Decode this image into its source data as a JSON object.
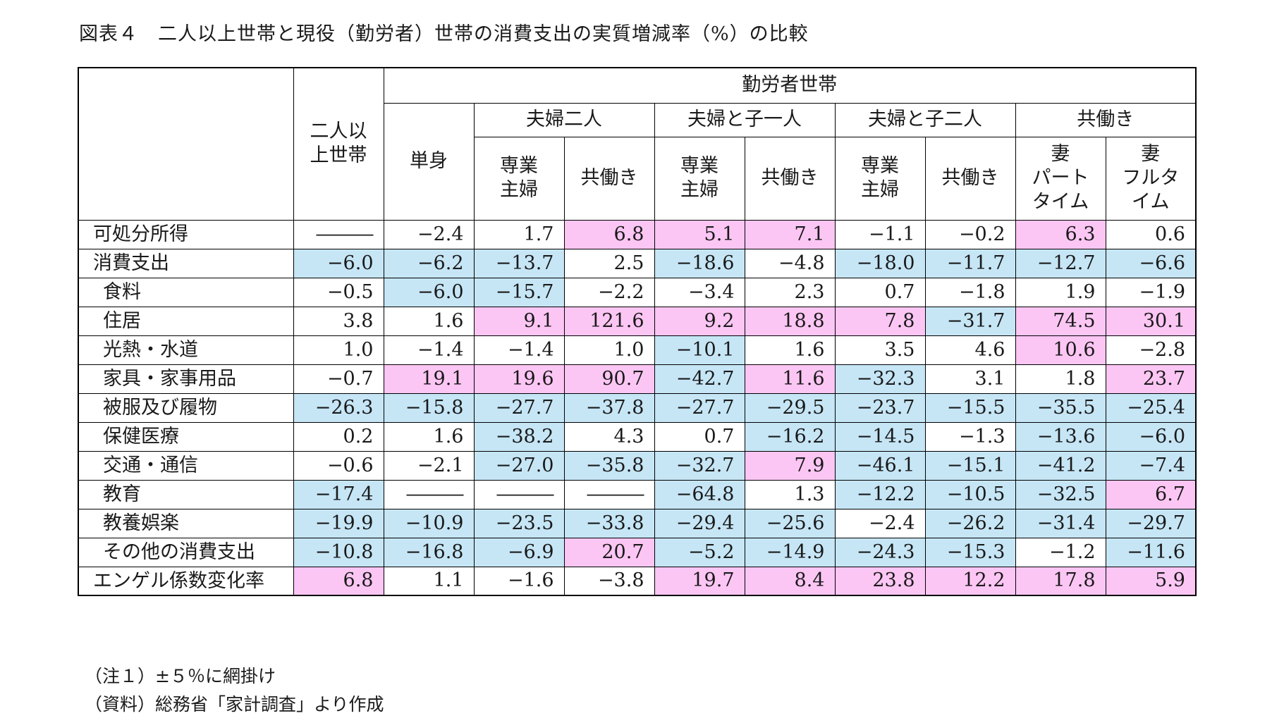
{
  "title": "図表４　二人以上世帯と現役（勤労者）世帯の消費支出の実質増減率（%）の比較",
  "header": {
    "col_all": [
      "二人以",
      "上世帯"
    ],
    "workers": "勤労者世帯",
    "single": "単身",
    "couple": "夫婦二人",
    "couple_child1": "夫婦と子一人",
    "couple_child2": "夫婦と子二人",
    "dual_income": "共働き",
    "housewife": [
      "専業",
      "主婦"
    ],
    "dual": "共働き",
    "wife_part": [
      "妻",
      "パート",
      "タイム"
    ],
    "wife_full": [
      "妻",
      "フルタ",
      "イム"
    ]
  },
  "rows": [
    {
      "label": "可処分所得",
      "indent": false,
      "values": [
        "―――",
        "−2.4",
        "1.7",
        "6.8",
        "5.1",
        "7.1",
        "−1.1",
        "−0.2",
        "6.3",
        "0.6"
      ],
      "colors": [
        "",
        "",
        "",
        "p",
        "p",
        "p",
        "",
        "",
        "p",
        ""
      ]
    },
    {
      "label": "消費支出",
      "indent": false,
      "values": [
        "−6.0",
        "−6.2",
        "−13.7",
        "2.5",
        "−18.6",
        "−4.8",
        "−18.0",
        "−11.7",
        "−12.7",
        "−6.6"
      ],
      "colors": [
        "b",
        "b",
        "b",
        "",
        "b",
        "",
        "b",
        "b",
        "b",
        "b"
      ]
    },
    {
      "label": "食料",
      "indent": true,
      "values": [
        "−0.5",
        "−6.0",
        "−15.7",
        "−2.2",
        "−3.4",
        "2.3",
        "0.7",
        "−1.8",
        "1.9",
        "−1.9"
      ],
      "colors": [
        "",
        "b",
        "b",
        "",
        "",
        "",
        "",
        "",
        "",
        ""
      ]
    },
    {
      "label": "住居",
      "indent": true,
      "values": [
        "3.8",
        "1.6",
        "9.1",
        "121.6",
        "9.2",
        "18.8",
        "7.8",
        "−31.7",
        "74.5",
        "30.1"
      ],
      "colors": [
        "",
        "",
        "p",
        "p",
        "p",
        "p",
        "p",
        "b",
        "p",
        "p"
      ]
    },
    {
      "label": "光熱・水道",
      "indent": true,
      "values": [
        "1.0",
        "−1.4",
        "−1.4",
        "1.0",
        "−10.1",
        "1.6",
        "3.5",
        "4.6",
        "10.6",
        "−2.8"
      ],
      "colors": [
        "",
        "",
        "",
        "",
        "b",
        "",
        "",
        "",
        "p",
        ""
      ]
    },
    {
      "label": "家具・家事用品",
      "indent": true,
      "values": [
        "−0.7",
        "19.1",
        "19.6",
        "90.7",
        "−42.7",
        "11.6",
        "−32.3",
        "3.1",
        "1.8",
        "23.7"
      ],
      "colors": [
        "",
        "p",
        "p",
        "p",
        "b",
        "p",
        "b",
        "",
        "",
        "p"
      ]
    },
    {
      "label": "被服及び履物",
      "indent": true,
      "values": [
        "−26.3",
        "−15.8",
        "−27.7",
        "−37.8",
        "−27.7",
        "−29.5",
        "−23.7",
        "−15.5",
        "−35.5",
        "−25.4"
      ],
      "colors": [
        "b",
        "b",
        "b",
        "b",
        "b",
        "b",
        "b",
        "b",
        "b",
        "b"
      ]
    },
    {
      "label": "保健医療",
      "indent": true,
      "values": [
        "0.2",
        "1.6",
        "−38.2",
        "4.3",
        "0.7",
        "−16.2",
        "−14.5",
        "−1.3",
        "−13.6",
        "−6.0"
      ],
      "colors": [
        "",
        "",
        "b",
        "",
        "",
        "b",
        "b",
        "",
        "b",
        "b"
      ]
    },
    {
      "label": "交通・通信",
      "indent": true,
      "values": [
        "−0.6",
        "−2.1",
        "−27.0",
        "−35.8",
        "−32.7",
        "7.9",
        "−46.1",
        "−15.1",
        "−41.2",
        "−7.4"
      ],
      "colors": [
        "",
        "",
        "b",
        "b",
        "b",
        "p",
        "b",
        "b",
        "b",
        "b"
      ]
    },
    {
      "label": "教育",
      "indent": true,
      "values": [
        "−17.4",
        "―――",
        "―――",
        "―――",
        "−64.8",
        "1.3",
        "−12.2",
        "−10.5",
        "−32.5",
        "6.7"
      ],
      "colors": [
        "b",
        "",
        "",
        "",
        "b",
        "",
        "b",
        "b",
        "b",
        "p"
      ]
    },
    {
      "label": "教養娯楽",
      "indent": true,
      "values": [
        "−19.9",
        "−10.9",
        "−23.5",
        "−33.8",
        "−29.4",
        "−25.6",
        "−2.4",
        "−26.2",
        "−31.4",
        "−29.7"
      ],
      "colors": [
        "b",
        "b",
        "b",
        "b",
        "b",
        "b",
        "",
        "b",
        "b",
        "b"
      ]
    },
    {
      "label": "その他の消費支出",
      "indent": true,
      "values": [
        "−10.8",
        "−16.8",
        "−6.9",
        "20.7",
        "−5.2",
        "−14.9",
        "−24.3",
        "−15.3",
        "−1.2",
        "−11.6"
      ],
      "colors": [
        "b",
        "b",
        "b",
        "p",
        "b",
        "b",
        "b",
        "b",
        "",
        "b"
      ]
    },
    {
      "label": "エンゲル係数変化率",
      "indent": false,
      "values": [
        "6.8",
        "1.1",
        "−1.6",
        "−3.8",
        "19.7",
        "8.4",
        "23.8",
        "12.2",
        "17.8",
        "5.9"
      ],
      "colors": [
        "p",
        "",
        "",
        "",
        "p",
        "p",
        "p",
        "p",
        "p",
        "p"
      ]
    }
  ],
  "highlight_colors": {
    "pink": "#fcc6f4",
    "blue": "#c6e6f6"
  },
  "notes": {
    "note1": "（注１）±５％に網掛け",
    "source": "（資料）総務省「家計調査」より作成"
  }
}
